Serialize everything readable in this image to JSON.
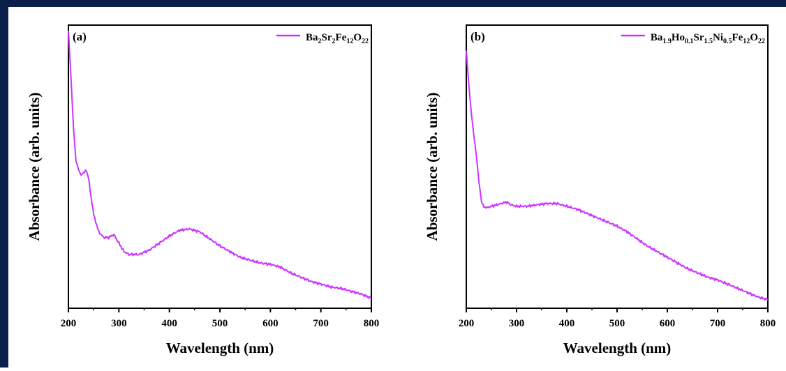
{
  "figure": {
    "accent_color": "#cc33ff",
    "frame_color": "#0b1f4a"
  },
  "chart_data": [
    {
      "type": "line",
      "panel_label": "(a)",
      "legend": [
        {
          "text": "Ba",
          "sub": null
        },
        {
          "text": "2",
          "sub": true
        },
        {
          "text": "Sr",
          "sub": null
        },
        {
          "text": "2",
          "sub": true
        },
        {
          "text": "Fe",
          "sub": null
        },
        {
          "text": "12",
          "sub": true
        },
        {
          "text": "O",
          "sub": null
        },
        {
          "text": "22",
          "sub": true
        }
      ],
      "xlabel": "Wavelength (nm)",
      "ylabel": "Absorbance (arb. units)",
      "xlim": [
        200,
        800
      ],
      "ylim": [
        0,
        1
      ],
      "xticks": [
        "200",
        "300",
        "400",
        "500",
        "600",
        "700",
        "800"
      ],
      "yticks_shown": false,
      "legend_position": "top-right",
      "color": "#cc33ff",
      "x": [
        200,
        205,
        210,
        215,
        220,
        225,
        230,
        235,
        240,
        245,
        250,
        260,
        270,
        280,
        290,
        300,
        310,
        320,
        340,
        360,
        380,
        400,
        420,
        440,
        460,
        480,
        500,
        520,
        540,
        560,
        580,
        600,
        620,
        640,
        660,
        680,
        700,
        720,
        740,
        760,
        780,
        800
      ],
      "y": [
        0.98,
        0.82,
        0.64,
        0.52,
        0.49,
        0.47,
        0.48,
        0.49,
        0.46,
        0.39,
        0.33,
        0.27,
        0.25,
        0.25,
        0.26,
        0.23,
        0.2,
        0.19,
        0.19,
        0.205,
        0.23,
        0.255,
        0.275,
        0.28,
        0.27,
        0.245,
        0.22,
        0.2,
        0.18,
        0.17,
        0.16,
        0.155,
        0.145,
        0.125,
        0.11,
        0.095,
        0.085,
        0.075,
        0.07,
        0.06,
        0.05,
        0.035
      ]
    },
    {
      "type": "line",
      "panel_label": "(b)",
      "legend": [
        {
          "text": "Ba",
          "sub": null
        },
        {
          "text": "1.9",
          "sub": true
        },
        {
          "text": "Ho",
          "sub": null
        },
        {
          "text": "0.1",
          "sub": true
        },
        {
          "text": "Sr",
          "sub": null
        },
        {
          "text": "1.5",
          "sub": true
        },
        {
          "text": "Ni",
          "sub": null
        },
        {
          "text": "0.5",
          "sub": true
        },
        {
          "text": "Fe",
          "sub": null
        },
        {
          "text": "12",
          "sub": true
        },
        {
          "text": "O",
          "sub": null
        },
        {
          "text": "22",
          "sub": true
        }
      ],
      "xlabel": "Wavelength (nm)",
      "ylabel": "Absorbance (arb. units)",
      "xlim": [
        200,
        800
      ],
      "ylim": [
        0,
        1
      ],
      "xticks": [
        "200",
        "300",
        "400",
        "500",
        "600",
        "700",
        "800"
      ],
      "yticks_shown": false,
      "legend_position": "top-right",
      "color": "#cc33ff",
      "x": [
        200,
        205,
        210,
        215,
        220,
        225,
        230,
        235,
        240,
        250,
        260,
        270,
        280,
        290,
        300,
        320,
        340,
        360,
        380,
        400,
        420,
        440,
        460,
        480,
        500,
        520,
        540,
        560,
        580,
        600,
        620,
        640,
        660,
        680,
        700,
        720,
        740,
        760,
        780,
        800
      ],
      "y": [
        0.91,
        0.79,
        0.69,
        0.61,
        0.54,
        0.45,
        0.38,
        0.36,
        0.355,
        0.36,
        0.365,
        0.37,
        0.375,
        0.365,
        0.36,
        0.36,
        0.365,
        0.37,
        0.37,
        0.36,
        0.35,
        0.335,
        0.32,
        0.305,
        0.29,
        0.27,
        0.245,
        0.22,
        0.2,
        0.18,
        0.16,
        0.14,
        0.125,
        0.11,
        0.1,
        0.085,
        0.07,
        0.055,
        0.04,
        0.03
      ]
    }
  ]
}
